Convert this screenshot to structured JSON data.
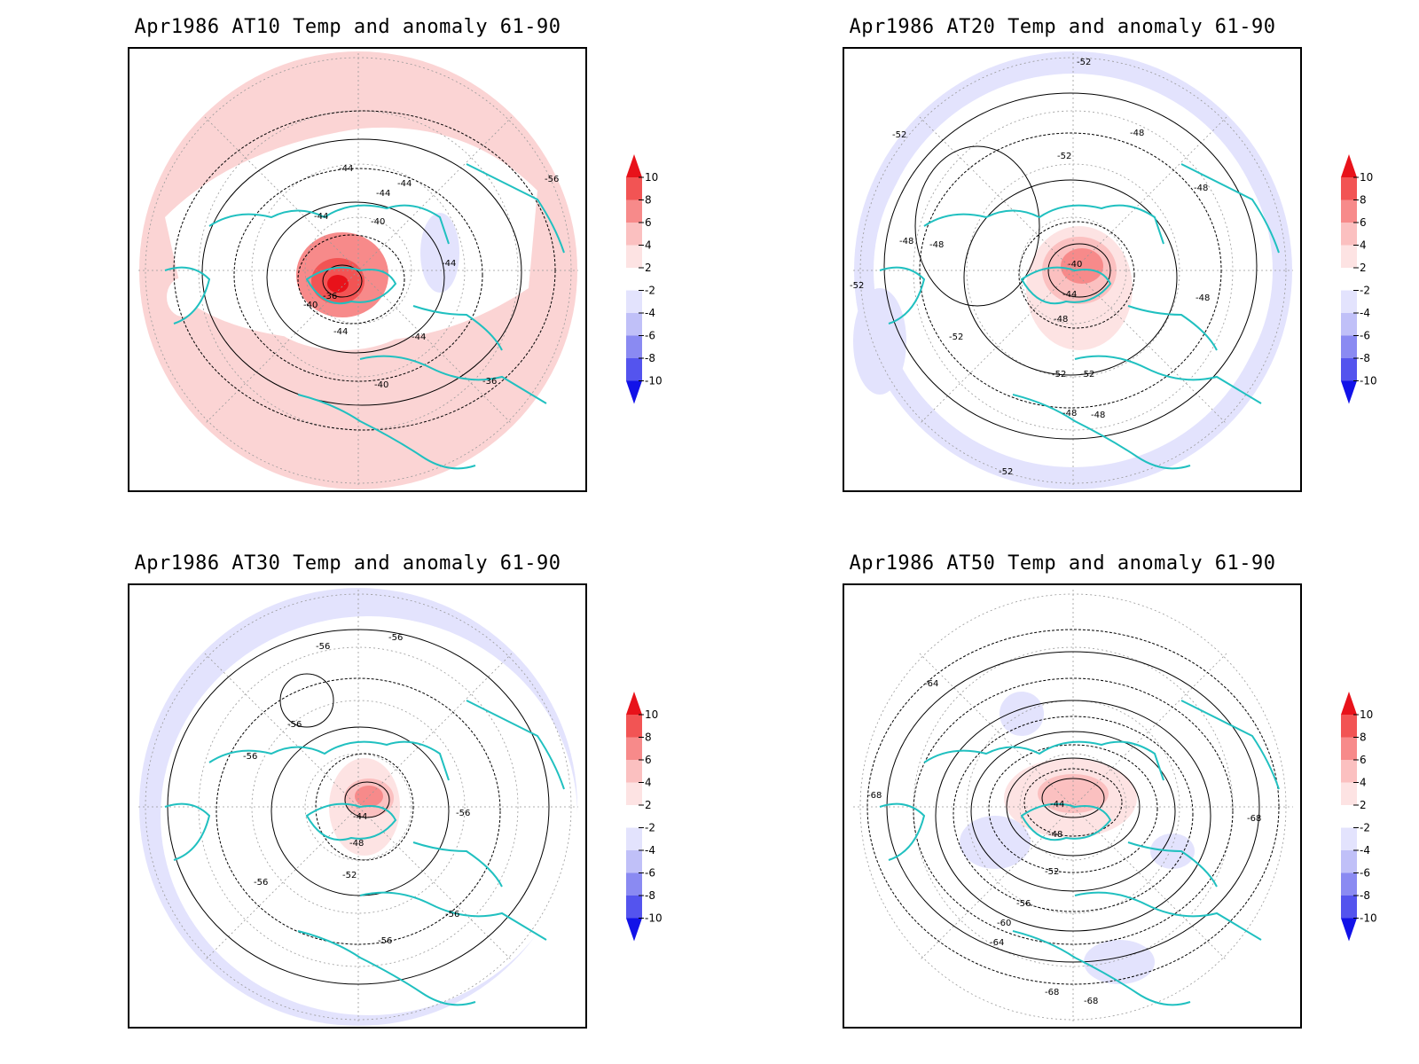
{
  "panels": [
    {
      "title": "Apr1986 AT10 Temp and anomaly 61-90",
      "contour_labels": [
        "-56",
        "-44",
        "-44",
        "-44",
        "-40",
        "-44",
        "-44",
        "-36",
        "-40",
        "-44",
        "-44",
        "-40",
        "-36"
      ]
    },
    {
      "title": "Apr1986 AT20 Temp and anomaly 61-90",
      "contour_labels": [
        "-52",
        "-52",
        "-48",
        "-52",
        "-48",
        "-48",
        "-48",
        "-52",
        "-40",
        "-44",
        "-48",
        "-48",
        "-52",
        "-52",
        "-52",
        "-48",
        "-48",
        "-52"
      ]
    },
    {
      "title": "Apr1986 AT30 Temp and anomaly 61-90",
      "contour_labels": [
        "-56",
        "-56",
        "-56",
        "-56",
        "-44",
        "-56",
        "-48",
        "-52",
        "-56",
        "-56",
        "-56"
      ]
    },
    {
      "title": "Apr1986 AT50 Temp and anomaly 61-90",
      "contour_labels": [
        "-64",
        "-68",
        "-44",
        "-68",
        "-48",
        "-52",
        "-56",
        "-60",
        "-64",
        "-68",
        "-68"
      ]
    }
  ],
  "colorbar": {
    "labels": [
      "10",
      "8",
      "6",
      "4",
      "2",
      "-2",
      "-4",
      "-6",
      "-8",
      "-10"
    ],
    "colors": {
      "c10": "#e8121a",
      "c8": "#f25454",
      "c6": "#f78a8a",
      "c4": "#fbc0c0",
      "c2": "#fde3e3",
      "c0": "#ffffff",
      "m2": "#e3e3fd",
      "m4": "#c0c0f8",
      "m6": "#8a8af2",
      "m8": "#5454ee",
      "m10": "#1212e8"
    }
  },
  "colors": {
    "coast": "#20c0c0",
    "contour": "#000000",
    "grid": "#999999"
  }
}
